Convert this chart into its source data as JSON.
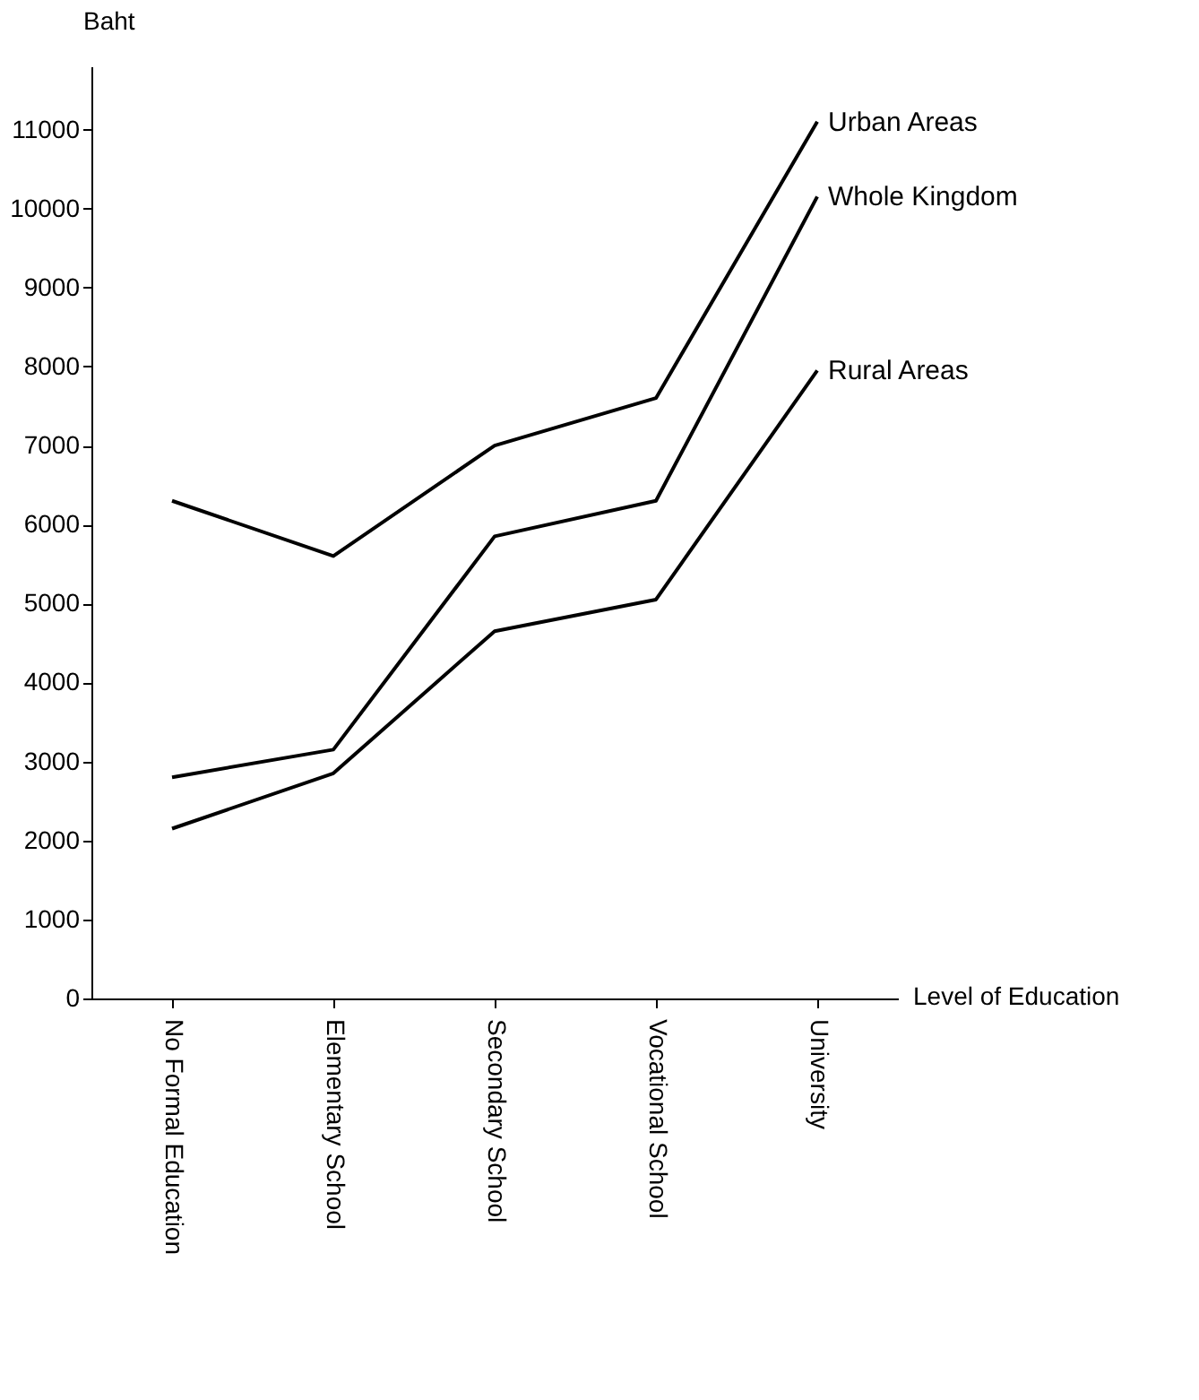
{
  "chart_data": {
    "type": "line",
    "xlabel": "Level of Education",
    "ylabel": "Baht",
    "categories": [
      "No Formal Education",
      "Elementary School",
      "Secondary School",
      "Vocational School",
      "University"
    ],
    "series": [
      {
        "name": "Urban Areas",
        "color": "#000000",
        "values": [
          6300,
          5600,
          7000,
          7600,
          11100
        ]
      },
      {
        "name": "Whole Kingdom",
        "color": "#000000",
        "values": [
          2800,
          3150,
          5850,
          6300,
          10150
        ]
      },
      {
        "name": "Rural Areas",
        "color": "#000000",
        "values": [
          2150,
          2850,
          4650,
          5050,
          7950
        ]
      }
    ],
    "ylim": [
      0,
      11800
    ],
    "yticks": [
      0,
      1000,
      2000,
      3000,
      4000,
      5000,
      6000,
      7000,
      8000,
      9000,
      10000,
      11000
    ],
    "grid": false,
    "marker": "none",
    "line_style": "solid"
  }
}
